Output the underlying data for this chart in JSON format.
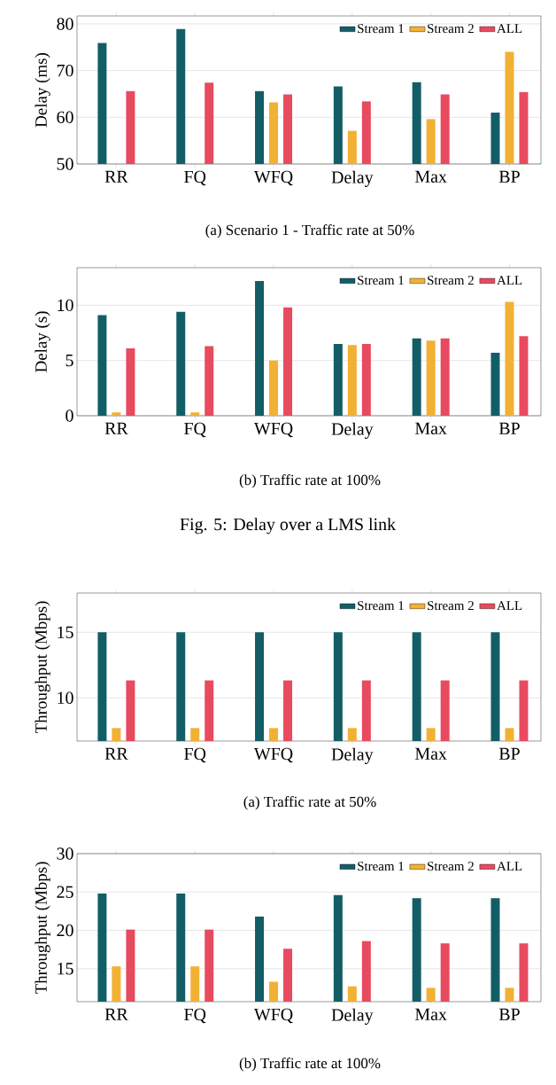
{
  "chart_data": [
    {
      "type": "bar",
      "title": "(a) Scenario 1 - Traffic rate at 50%",
      "ylabel": "Delay (ms)",
      "categories": [
        "RR",
        "FQ",
        "WFQ",
        "Delay",
        "Max",
        "BP"
      ],
      "series": [
        {
          "name": "Stream 1",
          "color": "#135e66",
          "values": [
            75.9,
            78.9,
            65.6,
            66.6,
            67.5,
            61.0
          ]
        },
        {
          "name": "Stream 2",
          "color": "#f2b134",
          "values": [
            50,
            50,
            63.2,
            57.1,
            59.6,
            74.0
          ]
        },
        {
          "name": "ALL",
          "color": "#e84a5f",
          "values": [
            65.6,
            67.4,
            64.9,
            63.4,
            64.9,
            65.4
          ]
        }
      ],
      "ylim": [
        50,
        81.7
      ],
      "yticks": [
        50,
        60,
        70,
        80
      ],
      "grid": "y",
      "legend": "top right"
    },
    {
      "type": "bar",
      "title": "(b) Traffic rate at 100%",
      "ylabel": "Delay (s)",
      "categories": [
        "RR",
        "FQ",
        "WFQ",
        "Delay",
        "Max",
        "BP"
      ],
      "series": [
        {
          "name": "Stream 1",
          "color": "#135e66",
          "values": [
            9.1,
            9.4,
            12.2,
            6.5,
            7.0,
            5.7
          ]
        },
        {
          "name": "Stream 2",
          "color": "#f2b134",
          "values": [
            0.3,
            0.3,
            5.0,
            6.4,
            6.8,
            10.3
          ]
        },
        {
          "name": "ALL",
          "color": "#e84a5f",
          "values": [
            6.1,
            6.3,
            9.8,
            6.5,
            7.0,
            7.2
          ]
        }
      ],
      "ylim": [
        0,
        13.4
      ],
      "yticks": [
        0,
        5,
        10
      ],
      "grid": "y",
      "legend": "top right",
      "annotations": [
        "Fig. 5: Delay over a LMS link"
      ]
    },
    {
      "type": "bar",
      "title": "(a) Traffic rate at 50%",
      "ylabel": "Throughput (Mbps)",
      "categories": [
        "RR",
        "FQ",
        "WFQ",
        "Delay",
        "Max",
        "BP"
      ],
      "series": [
        {
          "name": "Stream 1",
          "color": "#135e66",
          "values": [
            15.0,
            15.0,
            15.0,
            15.0,
            15.0,
            15.0
          ]
        },
        {
          "name": "Stream 2",
          "color": "#f2b134",
          "values": [
            7.69,
            7.69,
            7.69,
            7.69,
            7.69,
            7.69
          ]
        },
        {
          "name": "ALL",
          "color": "#e84a5f",
          "values": [
            11.33,
            11.33,
            11.33,
            11.33,
            11.33,
            11.33
          ]
        }
      ],
      "ylim": [
        6.7,
        18.0
      ],
      "yticks": [
        10,
        15
      ],
      "grid": "y",
      "legend": "top right"
    },
    {
      "type": "bar",
      "title": "(b) Traffic rate at 100%",
      "ylabel": "Throughput (Mbps)",
      "categories": [
        "RR",
        "FQ",
        "WFQ",
        "Delay",
        "Max",
        "BP"
      ],
      "series": [
        {
          "name": "Stream 1",
          "color": "#135e66",
          "values": [
            24.8,
            24.8,
            21.8,
            24.6,
            24.2,
            24.2
          ]
        },
        {
          "name": "Stream 2",
          "color": "#f2b134",
          "values": [
            15.3,
            15.3,
            13.3,
            12.7,
            12.5,
            12.5
          ]
        },
        {
          "name": "ALL",
          "color": "#e84a5f",
          "values": [
            20.1,
            20.1,
            17.6,
            18.6,
            18.3,
            18.3
          ]
        }
      ],
      "ylim": [
        10.7,
        30
      ],
      "yticks": [
        15,
        20,
        25,
        30
      ],
      "grid": "y",
      "legend": "top right"
    }
  ]
}
